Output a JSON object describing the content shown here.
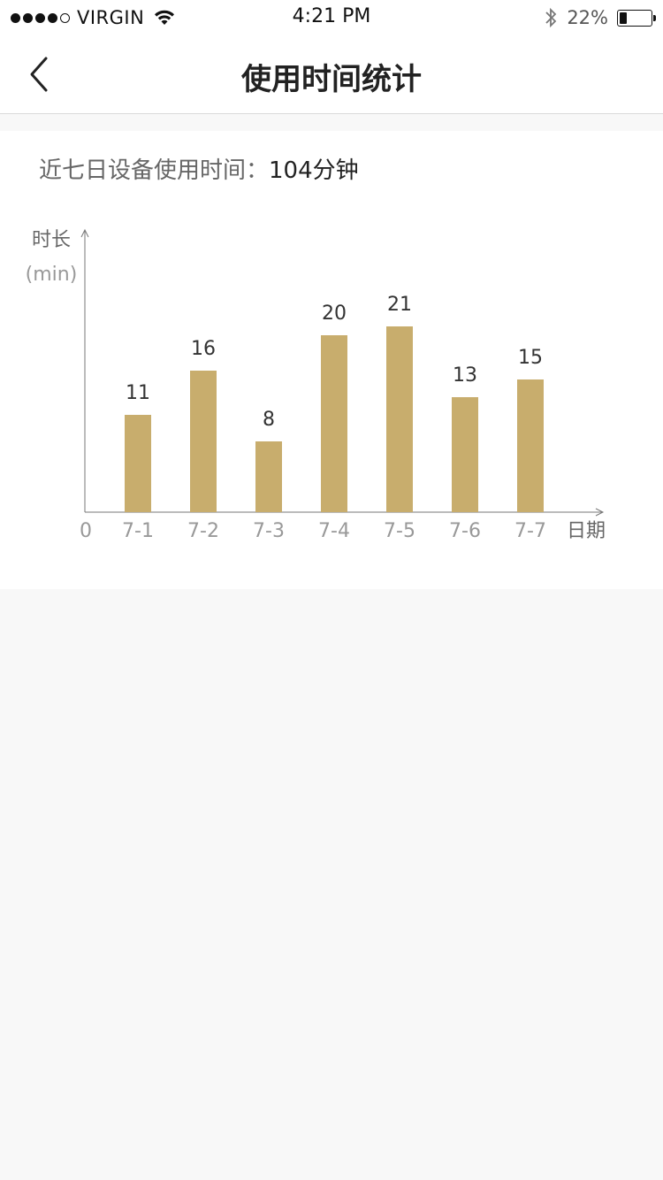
{
  "status_bar": {
    "carrier": "VIRGIN",
    "time": "4:21 PM",
    "battery_percent": "22%",
    "battery_level": 0.22,
    "signal_bars_filled": 4,
    "signal_bars_total": 5,
    "icons": [
      "wifi-icon",
      "bluetooth-icon",
      "battery-icon"
    ]
  },
  "nav": {
    "title": "使用时间统计",
    "back_icon": "chevron-left-icon"
  },
  "summary": {
    "label": "近七日设备使用时间：",
    "total": "104分钟"
  },
  "colors": {
    "bar": "#c8ad6d",
    "axis": "#777777",
    "tick_label": "#999999",
    "value_label": "#333333"
  },
  "chart_data": {
    "type": "bar",
    "categories": [
      "7-1",
      "7-2",
      "7-3",
      "7-4",
      "7-5",
      "7-6",
      "7-7"
    ],
    "values": [
      11,
      16,
      8,
      20,
      21,
      13,
      15
    ],
    "ylabel": "时长",
    "yunit": "(min)",
    "xlabel": "日期",
    "origin_label": "0",
    "ylim": [
      0,
      25
    ],
    "grid": false,
    "data_labels": true
  }
}
